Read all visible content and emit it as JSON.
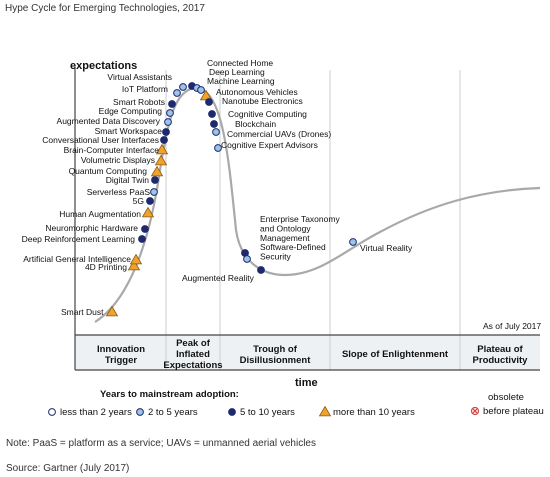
{
  "header": {
    "title": "Hype Cycle for Emerging Technologies, 2017",
    "note": "Note: PaaS = platform as a service; UAVs = unmanned aerial vehicles",
    "source": "Source: Gartner (July 2017)"
  },
  "chart_data": {
    "type": "scatter",
    "title": "",
    "ylabel": "expectations",
    "xlabel": "time",
    "as_of": "As of July 2017",
    "phases": [
      {
        "line1": "Innovation",
        "line2": "Trigger",
        "line3": ""
      },
      {
        "line1": "Peak of",
        "line2": "Inflated",
        "line3": "Expectations"
      },
      {
        "line1": "Trough of",
        "line2": "Disillusionment",
        "line3": ""
      },
      {
        "line1": "Slope of Enlightenment",
        "line2": "",
        "line3": ""
      },
      {
        "line1": "Plateau of",
        "line2": "Productivity",
        "line3": ""
      }
    ],
    "legend": {
      "title": "Years to mainstream adoption:",
      "items": [
        {
          "key": "lt2",
          "label": "less than 2 years",
          "fill": "#ffffff",
          "stroke": "#1e2a6e"
        },
        {
          "key": "2to5",
          "label": "2 to 5 years",
          "fill": "#9cc3e8",
          "stroke": "#1e2a6e"
        },
        {
          "key": "5to10",
          "label": "5 to 10 years",
          "fill": "#1e2a6e",
          "stroke": "#1e2a6e"
        },
        {
          "key": "gt10",
          "label": "more than 10 years",
          "fill": "#f0a22e",
          "stroke": "#8a5a10"
        }
      ],
      "obsolete_line1": "obsolete",
      "obsolete_line2": "before plateau"
    },
    "technologies": [
      {
        "name": "Smart Dust",
        "cat": "gt10"
      },
      {
        "name": "4D Printing",
        "cat": "gt10"
      },
      {
        "name": "Artificial General Intelligence",
        "cat": "gt10"
      },
      {
        "name": "Deep Reinforcement Learning",
        "cat": "5to10"
      },
      {
        "name": "Neuromorphic Hardware",
        "cat": "5to10"
      },
      {
        "name": "Human Augmentation",
        "cat": "gt10"
      },
      {
        "name": "5G",
        "cat": "5to10"
      },
      {
        "name": "Serverless PaaS",
        "cat": "2to5"
      },
      {
        "name": "Digital Twin",
        "cat": "5to10"
      },
      {
        "name": "Quantum Computing",
        "cat": "gt10"
      },
      {
        "name": "Volumetric Displays",
        "cat": "gt10"
      },
      {
        "name": "Brain-Computer Interface",
        "cat": "gt10"
      },
      {
        "name": "Conversational User Interfaces",
        "cat": "5to10"
      },
      {
        "name": "Smart Workspace",
        "cat": "5to10"
      },
      {
        "name": "Augmented Data Discovery",
        "cat": "2to5"
      },
      {
        "name": "Edge Computing",
        "cat": "2to5"
      },
      {
        "name": "Smart Robots",
        "cat": "5to10"
      },
      {
        "name": "IoT Platform",
        "cat": "2to5"
      },
      {
        "name": "Virtual Assistants",
        "cat": "2to5"
      },
      {
        "name": "Connected Home",
        "cat": "5to10"
      },
      {
        "name": "Deep Learning",
        "cat": "2to5"
      },
      {
        "name": "Machine Learning",
        "cat": "2to5"
      },
      {
        "name": "Autonomous Vehicles",
        "cat": "gt10"
      },
      {
        "name": "Nanotube Electronics",
        "cat": "5to10"
      },
      {
        "name": "Cognitive Computing",
        "cat": "5to10"
      },
      {
        "name": "Blockchain",
        "cat": "5to10"
      },
      {
        "name": "Commercial UAVs (Drones)",
        "cat": "2to5"
      },
      {
        "name": "Cognitive Expert Advisors",
        "cat": "2to5"
      },
      {
        "name": "Enterprise Taxonomy and Ontology Management",
        "cat": "5to10"
      },
      {
        "name": "Software-Defined Security",
        "cat": "2to5"
      },
      {
        "name": "Augmented Reality",
        "cat": "5to10"
      },
      {
        "name": "Virtual Reality",
        "cat": "2to5"
      }
    ]
  }
}
